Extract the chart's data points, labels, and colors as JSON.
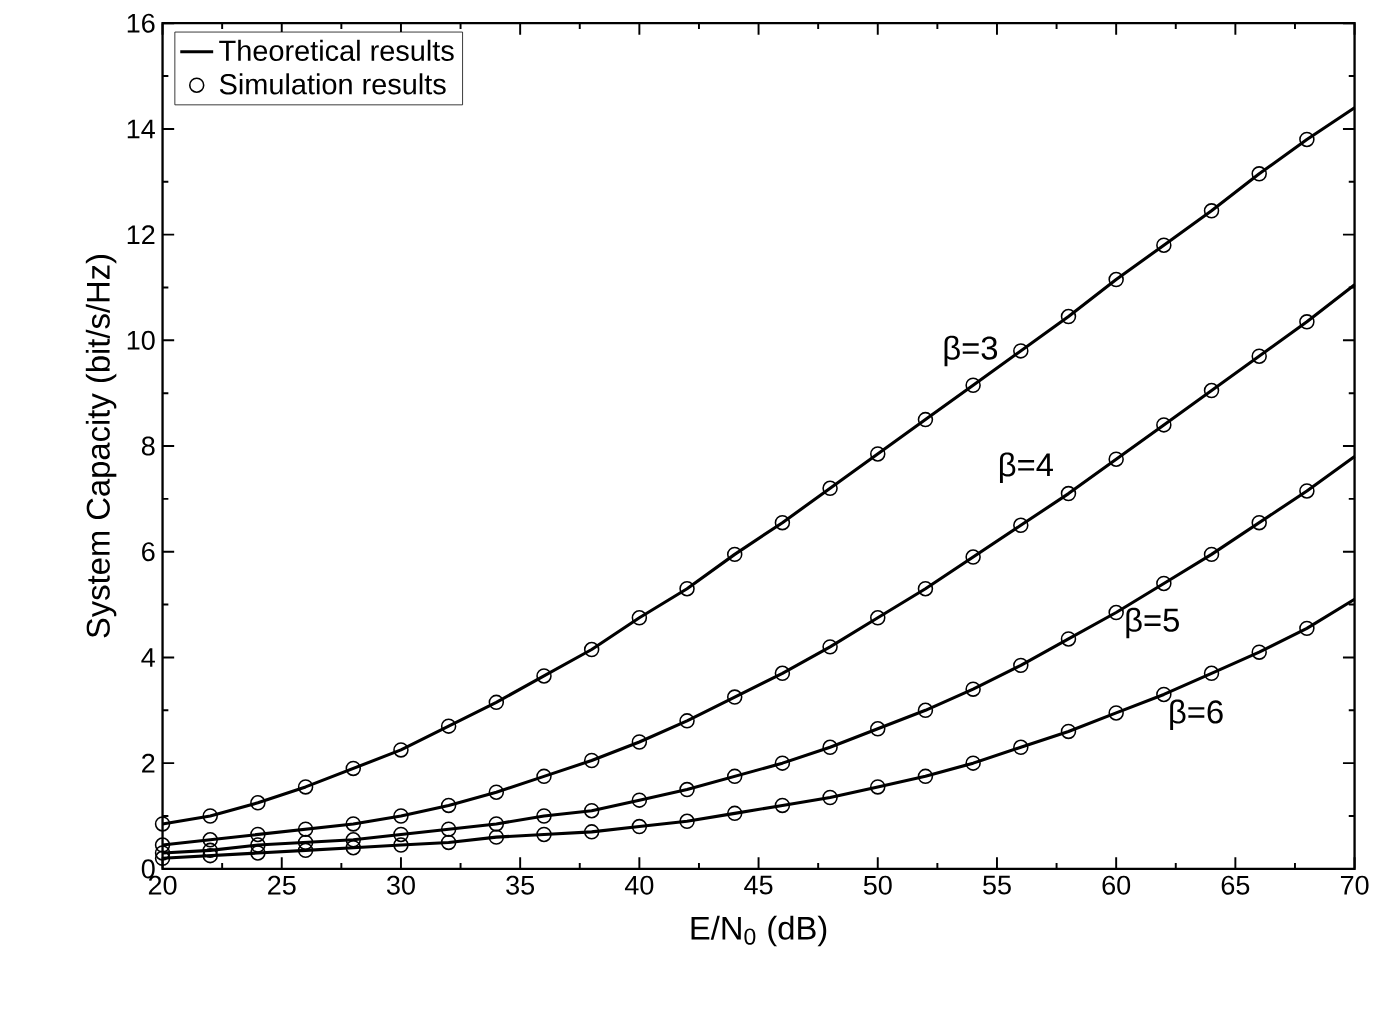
{
  "chart_data": {
    "type": "line",
    "xlabel": "E/N$_{0}$ (dB)",
    "ylabel": "System Capacity (bit/s/Hz)",
    "xlim": [
      20,
      70
    ],
    "ylim": [
      0,
      16
    ],
    "xticks": [
      20,
      25,
      30,
      35,
      40,
      45,
      50,
      55,
      60,
      65,
      70
    ],
    "yticks": [
      0,
      2,
      4,
      6,
      8,
      10,
      12,
      14,
      16
    ],
    "grid": false,
    "legend": "top left",
    "series": [
      {
        "name": "Theoretical results",
        "color": "#000000",
        "marker": "none",
        "line_style": "solid",
        "x": [
          20,
          22,
          24,
          26,
          28,
          30,
          32,
          34,
          36,
          38,
          40,
          42,
          44,
          46,
          48,
          50,
          52,
          54,
          56,
          58,
          60,
          62,
          64,
          66,
          68,
          70
        ],
        "values": [
          0.85,
          1.0,
          1.25,
          1.55,
          1.9,
          2.25,
          2.7,
          3.15,
          3.65,
          4.15,
          4.75,
          5.3,
          5.95,
          6.55,
          7.2,
          7.85,
          8.5,
          9.15,
          9.8,
          10.45,
          11.15,
          11.8,
          12.45,
          13.15,
          13.8,
          14.4
        ]
      },
      {
        "type": "line",
        "color": "#000000",
        "marker": "none",
        "line_style": "solid",
        "x": [
          20,
          22,
          24,
          26,
          28,
          30,
          32,
          34,
          36,
          38,
          40,
          42,
          44,
          46,
          48,
          50,
          52,
          54,
          56,
          58,
          60,
          62,
          64,
          66,
          68,
          70
        ],
        "values": [
          0.45,
          0.55,
          0.65,
          0.75,
          0.85,
          1.0,
          1.2,
          1.45,
          1.75,
          2.05,
          2.4,
          2.8,
          3.25,
          3.7,
          4.2,
          4.75,
          5.3,
          5.9,
          6.5,
          7.1,
          7.75,
          8.4,
          9.05,
          9.7,
          10.35,
          11.05
        ]
      },
      {
        "type": "line",
        "color": "#000000",
        "marker": "none",
        "line_style": "solid",
        "x": [
          20,
          22,
          24,
          26,
          28,
          30,
          32,
          34,
          36,
          38,
          40,
          42,
          44,
          46,
          48,
          50,
          52,
          54,
          56,
          58,
          60,
          62,
          64,
          66,
          68,
          70
        ],
        "values": [
          0.3,
          0.35,
          0.45,
          0.5,
          0.55,
          0.65,
          0.75,
          0.85,
          1.0,
          1.1,
          1.3,
          1.5,
          1.75,
          2.0,
          2.3,
          2.65,
          3.0,
          3.4,
          3.85,
          4.35,
          4.85,
          5.4,
          5.95,
          6.55,
          7.15,
          7.8
        ]
      },
      {
        "type": "line",
        "color": "#000000",
        "marker": "none",
        "line_style": "solid",
        "x": [
          20,
          22,
          24,
          26,
          28,
          30,
          32,
          34,
          36,
          38,
          40,
          42,
          44,
          46,
          48,
          50,
          52,
          54,
          56,
          58,
          60,
          62,
          64,
          66,
          68,
          70
        ],
        "values": [
          0.2,
          0.25,
          0.3,
          0.35,
          0.4,
          0.45,
          0.5,
          0.6,
          0.65,
          0.7,
          0.8,
          0.9,
          1.05,
          1.2,
          1.35,
          1.55,
          1.75,
          2.0,
          2.3,
          2.6,
          2.95,
          3.3,
          3.7,
          4.1,
          4.55,
          5.1
        ]
      },
      {
        "name": "Simulation results",
        "type": "scatter",
        "color": "#000000",
        "marker": "circle",
        "x": [
          20,
          22,
          24,
          26,
          28,
          30,
          32,
          34,
          36,
          38,
          40,
          42,
          44,
          46,
          48,
          50,
          52,
          54,
          56,
          58,
          60,
          62,
          64,
          66,
          68
        ],
        "values": [
          0.85,
          1.0,
          1.25,
          1.55,
          1.9,
          2.25,
          2.7,
          3.15,
          3.65,
          4.15,
          4.75,
          5.3,
          5.95,
          6.55,
          7.2,
          7.85,
          8.5,
          9.15,
          9.8,
          10.45,
          11.15,
          11.8,
          12.45,
          13.15,
          13.8
        ]
      },
      {
        "type": "scatter",
        "color": "#000000",
        "marker": "circle",
        "x": [
          20,
          22,
          24,
          26,
          28,
          30,
          32,
          34,
          36,
          38,
          40,
          42,
          44,
          46,
          48,
          50,
          52,
          54,
          56,
          58,
          60,
          62,
          64,
          66,
          68
        ],
        "values": [
          0.45,
          0.55,
          0.65,
          0.75,
          0.85,
          1.0,
          1.2,
          1.45,
          1.75,
          2.05,
          2.4,
          2.8,
          3.25,
          3.7,
          4.2,
          4.75,
          5.3,
          5.9,
          6.5,
          7.1,
          7.75,
          8.4,
          9.05,
          9.7,
          10.35
        ]
      },
      {
        "type": "scatter",
        "color": "#000000",
        "marker": "circle",
        "x": [
          20,
          22,
          24,
          26,
          28,
          30,
          32,
          34,
          36,
          38,
          40,
          42,
          44,
          46,
          48,
          50,
          52,
          54,
          56,
          58,
          60,
          62,
          64,
          66,
          68
        ],
        "values": [
          0.3,
          0.35,
          0.45,
          0.5,
          0.55,
          0.65,
          0.75,
          0.85,
          1.0,
          1.1,
          1.3,
          1.5,
          1.75,
          2.0,
          2.3,
          2.65,
          3.0,
          3.4,
          3.85,
          4.35,
          4.85,
          5.4,
          5.95,
          6.55,
          7.15
        ]
      },
      {
        "type": "scatter",
        "color": "#000000",
        "marker": "circle",
        "x": [
          20,
          22,
          24,
          26,
          28,
          30,
          32,
          34,
          36,
          38,
          40,
          42,
          44,
          46,
          48,
          50,
          52,
          54,
          56,
          58,
          60,
          62,
          64,
          66,
          68
        ],
        "values": [
          0.2,
          0.25,
          0.3,
          0.35,
          0.4,
          0.45,
          0.5,
          0.6,
          0.65,
          0.7,
          0.8,
          0.9,
          1.05,
          1.2,
          1.35,
          1.55,
          1.75,
          2.0,
          2.3,
          2.6,
          2.95,
          3.3,
          3.7,
          4.1,
          4.55
        ]
      }
    ],
    "annotations": [
      "β=3",
      "β=4",
      "β=5",
      "β=6"
    ]
  }
}
